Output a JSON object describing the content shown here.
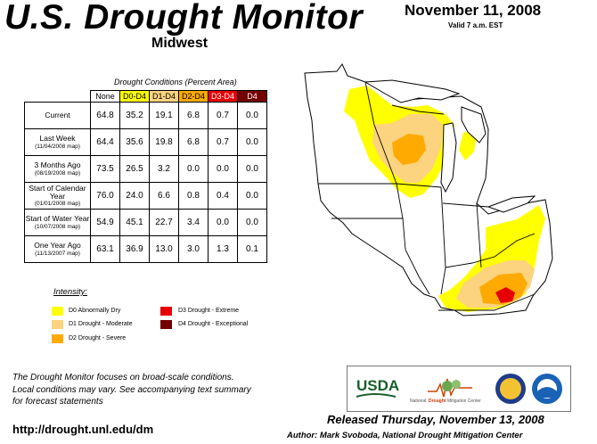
{
  "header": {
    "title": "U.S. Drought Monitor",
    "region": "Midwest",
    "date": "November 11, 2008",
    "valid": "Valid 7 a.m. EST"
  },
  "table": {
    "caption": "Drought Conditions (Percent Area)",
    "columns": [
      "None",
      "D0-D4",
      "D1-D4",
      "D2-D4",
      "D3-D4",
      "D4"
    ],
    "header_colors": [
      "#ffffff",
      "#ffff00",
      "#fcd37f",
      "#ffaa00",
      "#e60000",
      "#730000"
    ],
    "header_text_colors": [
      "#000000",
      "#000000",
      "#000000",
      "#000000",
      "#ffffff",
      "#ffffff"
    ],
    "rows": [
      {
        "label": "Current",
        "sub": "",
        "values": [
          "64.8",
          "35.2",
          "19.1",
          "6.8",
          "0.7",
          "0.0"
        ]
      },
      {
        "label": "Last Week",
        "sub": "(11/04/2008 map)",
        "values": [
          "64.4",
          "35.6",
          "19.8",
          "6.8",
          "0.7",
          "0.0"
        ]
      },
      {
        "label": "3 Months Ago",
        "sub": "(08/19/2008 map)",
        "values": [
          "73.5",
          "26.5",
          "3.2",
          "0.0",
          "0.0",
          "0.0"
        ]
      },
      {
        "label": "Start of Calendar Year",
        "sub": "(01/01/2008 map)",
        "values": [
          "76.0",
          "24.0",
          "6.6",
          "0.8",
          "0.4",
          "0.0"
        ]
      },
      {
        "label": "Start of Water Year",
        "sub": "(10/07/2008 map)",
        "values": [
          "54.9",
          "45.1",
          "22.7",
          "3.4",
          "0.0",
          "0.0"
        ]
      },
      {
        "label": "One Year Ago",
        "sub": "(11/13/2007 map)",
        "values": [
          "63.1",
          "36.9",
          "13.0",
          "3.0",
          "1.3",
          "0.1"
        ]
      }
    ]
  },
  "legend": {
    "title": "Intensity:",
    "items": [
      {
        "label": "D0 Abnormally Dry",
        "color": "#ffff00"
      },
      {
        "label": "D1 Drought - Moderate",
        "color": "#fcd37f"
      },
      {
        "label": "D2 Drought - Severe",
        "color": "#ffaa00"
      },
      {
        "label": "D3 Drought - Extreme",
        "color": "#e60000"
      },
      {
        "label": "D4 Drought - Exceptional",
        "color": "#730000"
      }
    ]
  },
  "footer": {
    "note_line1": "The Drought Monitor focuses on broad-scale conditions.",
    "note_line2": "Local conditions may vary. See accompanying text summary",
    "note_line3": "for forecast statements",
    "url": "http://drought.unl.edu/dm",
    "released": "Released Thursday, November 13, 2008",
    "author": "Author: Mark Svoboda, National Drought Mitigation Center"
  },
  "logos": {
    "usda": "USDA",
    "ndmc_left": "National",
    "ndmc_mid": "Drought",
    "ndmc_right": "Mitigation Center"
  }
}
